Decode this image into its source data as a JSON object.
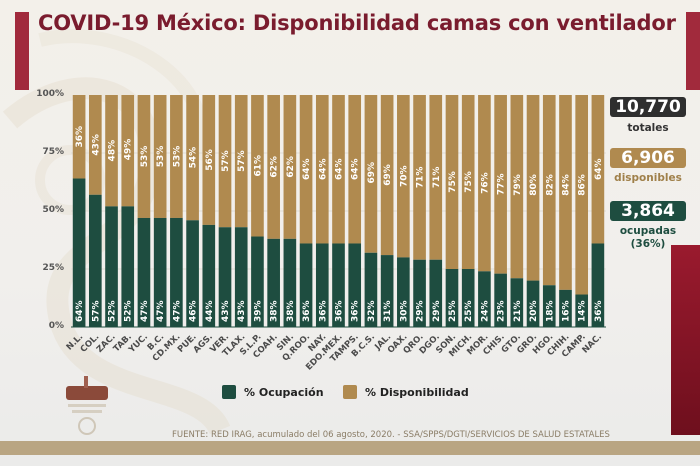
{
  "title": "COVID-19 México: Disponibilidad camas con ventilador",
  "chart_data": {
    "type": "bar",
    "stacked": true,
    "title": "COVID-19 México: Disponibilidad camas con ventilador",
    "xlabel": "",
    "ylabel": "",
    "ylim": [
      0,
      100
    ],
    "yticks": [
      "0%",
      "25%",
      "50%",
      "75%",
      "100%"
    ],
    "grid": true,
    "legend_position": "bottom",
    "categories": [
      "N.L.",
      "COL.",
      "ZAC.",
      "TAB.",
      "YUC.",
      "B.C.",
      "CD.MX.",
      "PUE.",
      "AGS.",
      "VER.",
      "TLAX.",
      "S.L.P.",
      "COAH.",
      "SIN.",
      "Q.ROO.",
      "NAY.",
      "EDO.MEX.",
      "TAMPS.",
      "B.C.S.",
      "JAL.",
      "OAX.",
      "QRO.",
      "DGO.",
      "SON.",
      "MICH.",
      "MOR.",
      "CHIS.",
      "GTO.",
      "GRO.",
      "HGO.",
      "CHIH.",
      "CAMP.",
      "NAC."
    ],
    "series": [
      {
        "name": "% Ocupación",
        "color": "#1e4d40",
        "values": [
          64,
          57,
          52,
          52,
          47,
          47,
          47,
          46,
          44,
          43,
          43,
          39,
          38,
          38,
          36,
          36,
          36,
          36,
          32,
          31,
          30,
          29,
          29,
          25,
          25,
          24,
          23,
          21,
          20,
          18,
          16,
          14,
          36
        ]
      },
      {
        "name": "% Disponibilidad",
        "color": "#b08a4f",
        "values": [
          36,
          43,
          48,
          49,
          53,
          53,
          53,
          54,
          56,
          57,
          57,
          61,
          62,
          62,
          64,
          64,
          64,
          64,
          69,
          69,
          70,
          71,
          71,
          75,
          75,
          76,
          77,
          79,
          80,
          82,
          84,
          86,
          64
        ]
      }
    ]
  },
  "legend": {
    "occupancy_label": "% Ocupación",
    "availability_label": "% Disponibilidad"
  },
  "stats": {
    "total_value": "10,770",
    "total_label": "totales",
    "available_value": "6,906",
    "available_label": "disponibles",
    "occupied_value": "3,864",
    "occupied_label": "ocupadas",
    "occupied_pct": "(36%)"
  },
  "colors": {
    "occupancy": "#1e4d40",
    "availability": "#b08a4f",
    "total_box": "#2f2f2f",
    "title": "#7a1c2e",
    "accent_red": "#a12a3c"
  },
  "source": "FUENTE: RED IRAG, acumulado del 06 agosto, 2020. -  SSA/SPPS/DGTI/SERVICIOS DE SALUD ESTATALES"
}
